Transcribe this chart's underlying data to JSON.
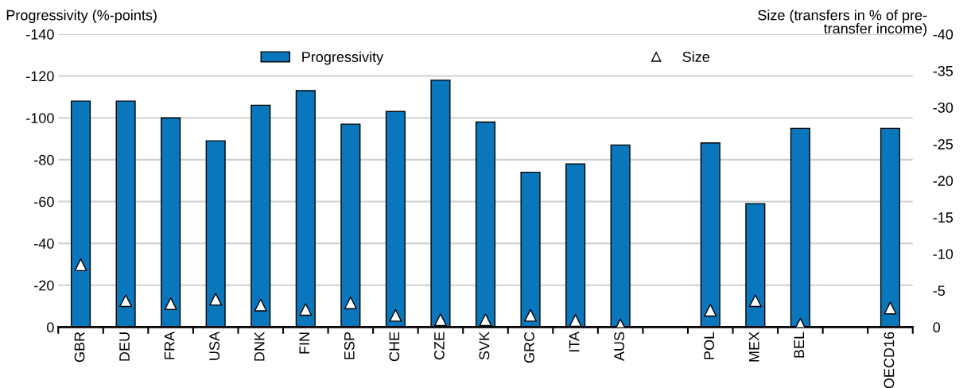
{
  "chart_data": {
    "type": "bar",
    "ylabel": "Progressivity (%-points)",
    "y2label": "Size (transfers in % of pre-\ntransfer income)",
    "categories": [
      "GBR",
      "DEU",
      "FRA",
      "USA",
      "DNK",
      "FIN",
      "ESP",
      "CHE",
      "CZE",
      "SVK",
      "GRC",
      "ITA",
      "AUS",
      null,
      "POL",
      "MEX",
      "BEL",
      null,
      "OECD16"
    ],
    "series": [
      {
        "name": "Progressivity",
        "color": "#0a77bd",
        "values": [
          -108,
          -108,
          -100,
          -89,
          -106,
          -113,
          -97,
          -103,
          -118,
          -98,
          -74,
          -78,
          -87,
          null,
          -88,
          -59,
          -95,
          null,
          -95
        ]
      },
      {
        "name": "Size",
        "type": "scatter",
        "axis": "y2",
        "marker": "triangle",
        "color": "#ffffff",
        "values": [
          -8.5,
          -3.6,
          -3.2,
          -3.8,
          -3.0,
          -2.4,
          -3.3,
          -1.6,
          -1.0,
          -1.0,
          -1.6,
          -0.9,
          -0.3,
          null,
          -2.3,
          -3.6,
          -0.4,
          null,
          -2.6
        ]
      }
    ],
    "ylim": [
      0,
      -140
    ],
    "yticks": [
      0,
      -20,
      -40,
      -60,
      -80,
      -100,
      -120,
      -140
    ],
    "y2lim": [
      0,
      -40
    ],
    "y2ticks": [
      0,
      -5,
      -10,
      -15,
      -20,
      -25,
      -30,
      -35,
      -40
    ],
    "grid": "y",
    "legend": "top"
  }
}
